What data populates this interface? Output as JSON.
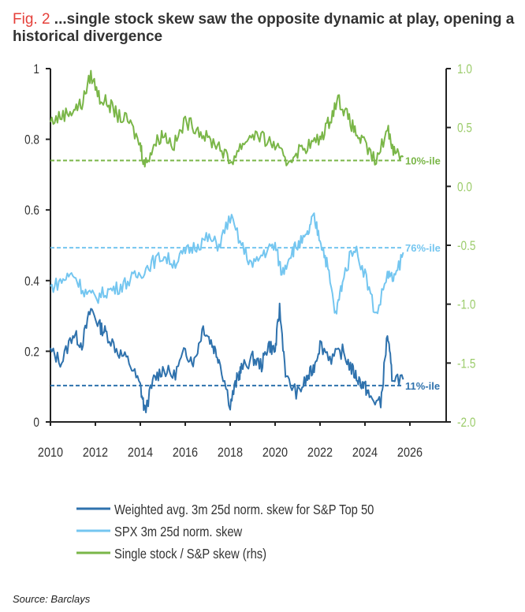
{
  "title": {
    "fig": "Fig. 2",
    "text": " ...single stock skew saw the opposite dynamic at play, opening a historical divergence"
  },
  "source": "Source: Barclays",
  "chart_data": {
    "type": "line",
    "xlim": [
      2010,
      2026
    ],
    "x_ticks": [
      "2010",
      "2012",
      "2014",
      "2016",
      "2018",
      "2020",
      "2022",
      "2024",
      "2026"
    ],
    "ylim_left": [
      0,
      1
    ],
    "y_ticks_left": [
      "0",
      "0.2",
      "0.4",
      "0.6",
      "0.8",
      "1"
    ],
    "ylim_right": [
      -2.0,
      1.0
    ],
    "y_ticks_right": [
      "-2.0",
      "-1.5",
      "-1.0",
      "-0.5",
      "0.0",
      "0.5",
      "1.0"
    ],
    "colors": {
      "dark": "#2f72ad",
      "light": "#74c6f0",
      "green": "#7ab648",
      "rhs_tick": "#9ccc6b"
    },
    "series": [
      {
        "name": "Weighted avg. 3m 25d norm. skew for S&P Top 50",
        "axis": "left",
        "color": "#2f72ad",
        "x": [
          2010,
          2010.5,
          2011,
          2011.4,
          2011.8,
          2012.2,
          2012.5,
          2013,
          2013.5,
          2014,
          2014.2,
          2014.6,
          2015,
          2015.5,
          2016,
          2016.4,
          2016.8,
          2017.2,
          2017.5,
          2018,
          2018.3,
          2018.5,
          2019,
          2019.4,
          2019.7,
          2020,
          2020.2,
          2020.5,
          2021,
          2021.4,
          2021.7,
          2022,
          2022.5,
          2023,
          2023.4,
          2023.7,
          2024,
          2024.2,
          2024.7,
          2025,
          2025.2,
          2025.7
        ],
        "y": [
          0.2,
          0.17,
          0.25,
          0.22,
          0.32,
          0.27,
          0.25,
          0.2,
          0.17,
          0.1,
          0.03,
          0.12,
          0.15,
          0.13,
          0.2,
          0.17,
          0.27,
          0.22,
          0.18,
          0.05,
          0.12,
          0.15,
          0.18,
          0.16,
          0.22,
          0.2,
          0.32,
          0.12,
          0.08,
          0.12,
          0.15,
          0.22,
          0.18,
          0.2,
          0.15,
          0.12,
          0.1,
          0.07,
          0.05,
          0.25,
          0.13,
          0.12
        ]
      },
      {
        "name": "SPX 3m 25d norm. skew",
        "axis": "left",
        "color": "#74c6f0",
        "x": [
          2010,
          2010.5,
          2011,
          2011.5,
          2012,
          2012.5,
          2013,
          2013.5,
          2014,
          2014.5,
          2015,
          2015.5,
          2016,
          2016.5,
          2017,
          2017.5,
          2018,
          2018.5,
          2019,
          2019.5,
          2020,
          2020.3,
          2020.7,
          2021,
          2021.4,
          2021.7,
          2022,
          2022.3,
          2022.7,
          2023,
          2023.5,
          2024,
          2024.5,
          2025,
          2025.3,
          2025.7
        ],
        "y": [
          0.38,
          0.4,
          0.42,
          0.37,
          0.35,
          0.37,
          0.38,
          0.4,
          0.42,
          0.45,
          0.47,
          0.45,
          0.48,
          0.5,
          0.52,
          0.5,
          0.58,
          0.5,
          0.44,
          0.48,
          0.5,
          0.42,
          0.48,
          0.5,
          0.52,
          0.58,
          0.52,
          0.45,
          0.3,
          0.4,
          0.5,
          0.42,
          0.3,
          0.42,
          0.4,
          0.48
        ]
      },
      {
        "name": "Single stock / S&P skew (rhs)",
        "axis": "right",
        "color": "#7ab648",
        "x": [
          2010,
          2010.5,
          2011,
          2011.4,
          2011.8,
          2012.2,
          2012.6,
          2013,
          2013.5,
          2014,
          2014.2,
          2014.6,
          2015,
          2015.5,
          2016,
          2016.5,
          2017,
          2017.5,
          2018,
          2018.5,
          2019,
          2019.5,
          2020,
          2020.5,
          2021,
          2021.5,
          2022,
          2022.4,
          2022.8,
          2023.2,
          2023.6,
          2024,
          2024.5,
          2025,
          2025.3,
          2025.7
        ],
        "y": [
          0.55,
          0.6,
          0.65,
          0.7,
          0.95,
          0.75,
          0.7,
          0.6,
          0.55,
          0.35,
          0.18,
          0.35,
          0.45,
          0.35,
          0.55,
          0.5,
          0.4,
          0.35,
          0.2,
          0.35,
          0.45,
          0.4,
          0.35,
          0.2,
          0.3,
          0.35,
          0.4,
          0.55,
          0.75,
          0.6,
          0.45,
          0.35,
          0.2,
          0.5,
          0.3,
          0.25
        ]
      }
    ],
    "reference_lines": [
      {
        "label": "10%-ile",
        "axis": "right",
        "value": 0.22,
        "color": "#7ab648"
      },
      {
        "label": "76%-ile",
        "axis": "left",
        "value": 0.493,
        "color": "#74c6f0"
      },
      {
        "label": "11%-ile",
        "axis": "left",
        "value": 0.103,
        "color": "#2f72ad"
      }
    ],
    "legend_position": "bottom"
  }
}
